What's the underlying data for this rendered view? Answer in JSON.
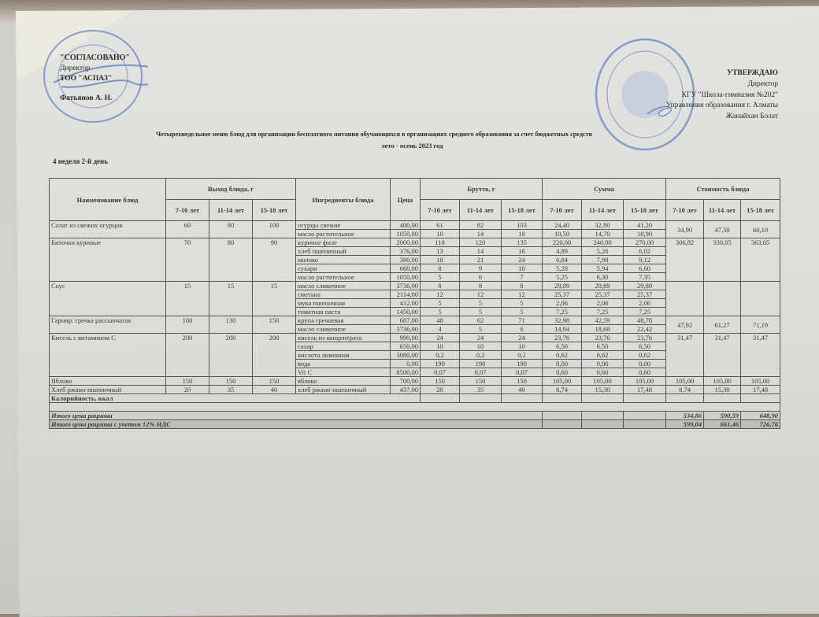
{
  "approval_left": {
    "title": "\"СОГЛАСОВАНО\"",
    "role": "Директор",
    "org": "ТОО \"АСПАЗ\"",
    "name": "Фатьянов А. Н."
  },
  "approval_right": {
    "title": "УТВЕРЖДАЮ",
    "role": "Директор",
    "org": "КГУ \"Школа-гимназия №202\"",
    "dept": "Управления образования г. Алматы",
    "name": "Жанайхан Болат"
  },
  "document": {
    "title": "Четырехнедельное меню блюд для организации бесплатного питания обучающихся в организациях среднего образования за счет бюджетных средств",
    "subtitle": "лето - осень 2023 год",
    "day": "4 неделя 2-й день"
  },
  "table": {
    "headers": {
      "dish": "Наименование блюд",
      "yield": "Выход блюда, г",
      "ingredients": "Ингредиенты блюда",
      "price": "Цена",
      "brutto": "Брутто, г",
      "sum": "Сумма",
      "cost": "Стоимость блюда",
      "ages": [
        "7-10 лет",
        "11-14 лет",
        "15-18 лет"
      ]
    },
    "dishes": [
      {
        "name": "Салат из свежих огурцов",
        "yield": [
          "60",
          "80",
          "100"
        ],
        "cost": [
          "34,90",
          "47,50",
          "60,10"
        ],
        "ingredients": [
          {
            "name": "огурцы свежие",
            "price": "400,00",
            "brutto": [
              "61",
              "82",
              "103"
            ],
            "sum": [
              "24,40",
              "32,80",
              "41,20"
            ]
          },
          {
            "name": "масло растительное",
            "price": "1050,00",
            "brutto": [
              "10",
              "14",
              "18"
            ],
            "sum": [
              "10,50",
              "14,70",
              "18,90"
            ]
          }
        ]
      },
      {
        "name": "Биточки куриные",
        "yield": [
          "70",
          "80",
          "90"
        ],
        "cost": [
          "306,82",
          "330,05",
          "363,65"
        ],
        "ingredients": [
          {
            "name": "куриное филе",
            "price": "2000,00",
            "brutto": [
              "110",
              "120",
              "135"
            ],
            "sum": [
              "220,00",
              "240,00",
              "270,00"
            ]
          },
          {
            "name": "хлеб пшеничный",
            "price": "376,00",
            "brutto": [
              "13",
              "14",
              "16"
            ],
            "sum": [
              "4,89",
              "5,26",
              "6,02"
            ]
          },
          {
            "name": "молоко",
            "price": "380,00",
            "brutto": [
              "18",
              "21",
              "24"
            ],
            "sum": [
              "6,84",
              "7,98",
              "9,12"
            ]
          },
          {
            "name": "сухари",
            "price": "660,00",
            "brutto": [
              "8",
              "9",
              "10"
            ],
            "sum": [
              "5,28",
              "5,94",
              "6,60"
            ]
          },
          {
            "name": "масло растительное",
            "price": "1050,00",
            "brutto": [
              "5",
              "6",
              "7"
            ],
            "sum": [
              "5,25",
              "6,30",
              "7,35"
            ]
          }
        ]
      },
      {
        "name": "Соус",
        "yield": [
          "15",
          "15",
          "15"
        ],
        "cost": [
          "",
          "",
          ""
        ],
        "ingredients": [
          {
            "name": "масло сливочное",
            "price": "3736,00",
            "brutto": [
              "8",
              "8",
              "8"
            ],
            "sum": [
              "29,89",
              "29,89",
              "29,89"
            ]
          },
          {
            "name": "сметана",
            "price": "2114,00",
            "brutto": [
              "12",
              "12",
              "12"
            ],
            "sum": [
              "25,37",
              "25,37",
              "25,37"
            ]
          },
          {
            "name": "мука пшеничная",
            "price": "412,00",
            "brutto": [
              "5",
              "5",
              "5"
            ],
            "sum": [
              "2,06",
              "2,06",
              "2,06"
            ]
          },
          {
            "name": "томатная паста",
            "price": "1450,00",
            "brutto": [
              "5",
              "5",
              "5"
            ],
            "sum": [
              "7,25",
              "7,25",
              "7,25"
            ]
          }
        ]
      },
      {
        "name": "Гарнир: гречка рассыпчатая",
        "yield": [
          "100",
          "130",
          "150"
        ],
        "cost": [
          "47,92",
          "61,27",
          "71,19"
        ],
        "ingredients": [
          {
            "name": "крупа гречневая",
            "price": "687,00",
            "brutto": [
              "48",
              "62",
              "71"
            ],
            "sum": [
              "32,98",
              "42,59",
              "48,78"
            ]
          },
          {
            "name": "масло сливочное",
            "price": "3736,00",
            "brutto": [
              "4",
              "5",
              "6"
            ],
            "sum": [
              "14,94",
              "18,68",
              "22,42"
            ]
          }
        ]
      },
      {
        "name": "Кисель с витамином С",
        "yield": [
          "200",
          "200",
          "200"
        ],
        "cost": [
          "31,47",
          "31,47",
          "31,47"
        ],
        "ingredients": [
          {
            "name": "кисель из концентрата",
            "price": "990,00",
            "brutto": [
              "24",
              "24",
              "24"
            ],
            "sum": [
              "23,76",
              "23,76",
              "23,76"
            ]
          },
          {
            "name": "сахар",
            "price": "650,00",
            "brutto": [
              "10",
              "10",
              "10"
            ],
            "sum": [
              "6,50",
              "6,50",
              "6,50"
            ]
          },
          {
            "name": "кислота лимонная",
            "price": "3080,00",
            "brutto": [
              "0,2",
              "0,2",
              "0,2"
            ],
            "sum": [
              "0,62",
              "0,62",
              "0,62"
            ]
          },
          {
            "name": "вода",
            "price": "0,00",
            "brutto": [
              "190",
              "190",
              "190"
            ],
            "sum": [
              "0,00",
              "0,00",
              "0,00"
            ]
          },
          {
            "name": "Vit C",
            "price": "8500,00",
            "brutto": [
              "0,07",
              "0,07",
              "0,07"
            ],
            "sum": [
              "0,60",
              "0,60",
              "0,60"
            ]
          }
        ]
      },
      {
        "name": "Яблоко",
        "yield": [
          "150",
          "150",
          "150"
        ],
        "cost": [
          "105,00",
          "105,00",
          "105,00"
        ],
        "ingredients": [
          {
            "name": "яблоко",
            "price": "700,00",
            "brutto": [
              "150",
              "150",
              "150"
            ],
            "sum": [
              "105,00",
              "105,00",
              "105,00"
            ]
          }
        ]
      },
      {
        "name": "Хлеб ржано-пшеничный",
        "yield": [
          "20",
          "35",
          "40"
        ],
        "cost": [
          "8,74",
          "15,30",
          "17,48"
        ],
        "ingredients": [
          {
            "name": "хлеб ржано-пшеничный",
            "price": "437,00",
            "brutto": [
              "20",
              "35",
              "40"
            ],
            "sum": [
              "8,74",
              "15,30",
              "17,48"
            ]
          }
        ]
      }
    ],
    "calories_label": "Калорийность, ккал",
    "total_label": "Итого цена рациона",
    "total": [
      "534,86",
      "590,59",
      "648,90"
    ],
    "total_vat_label": "Итого цена рациона с учетом 12% НДС",
    "total_vat": [
      "599,04",
      "661,46",
      "726,76"
    ]
  },
  "colors": {
    "stamp": "#5b7fc4",
    "ink": "#2c2c2c"
  }
}
